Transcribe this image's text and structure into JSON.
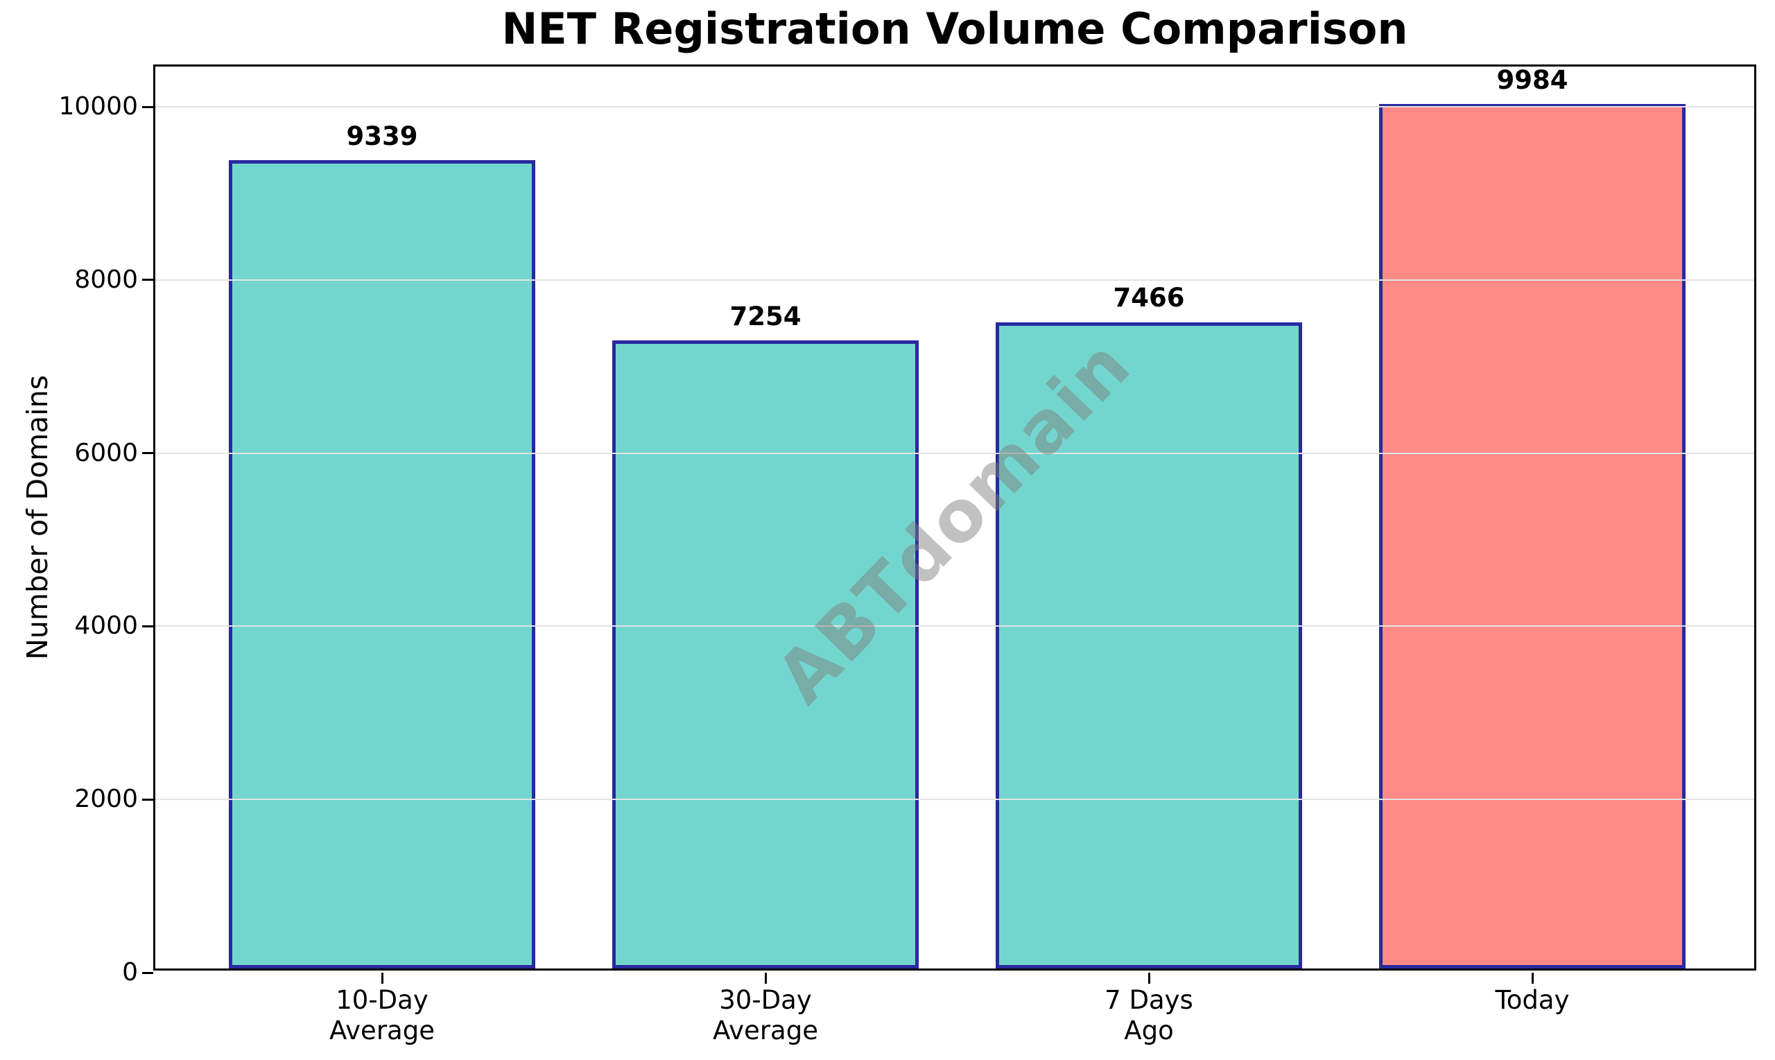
{
  "title": "NET Registration Volume Comparison",
  "watermark": "ABTdomain",
  "chart_data": {
    "type": "bar",
    "title": "NET Registration Volume Comparison",
    "xlabel": "",
    "ylabel": "Number of Domains",
    "categories": [
      "10-Day\nAverage",
      "30-Day\nAverage",
      "7 Days\nAgo",
      "Today"
    ],
    "values": [
      9339,
      7254,
      7466,
      9984
    ],
    "value_labels": [
      "9339",
      "7254",
      "7466",
      "9984"
    ],
    "bar_colors": [
      "#73D6CE",
      "#73D6CE",
      "#73D6CE",
      "#FF8A86"
    ],
    "bar_edge_color": "#2929A0",
    "yticks": [
      0,
      2000,
      4000,
      6000,
      8000,
      10000
    ],
    "ytick_labels": [
      "0",
      "2000",
      "4000",
      "6000",
      "8000",
      "10000"
    ],
    "ylim": [
      0,
      10470
    ],
    "grid": "horizontal",
    "grid_color": "#e3e3e3",
    "axis_color": "#000000",
    "text_color": "#000000",
    "background_color": "#ffffff",
    "legend": "none",
    "watermark": "ABTdomain"
  }
}
